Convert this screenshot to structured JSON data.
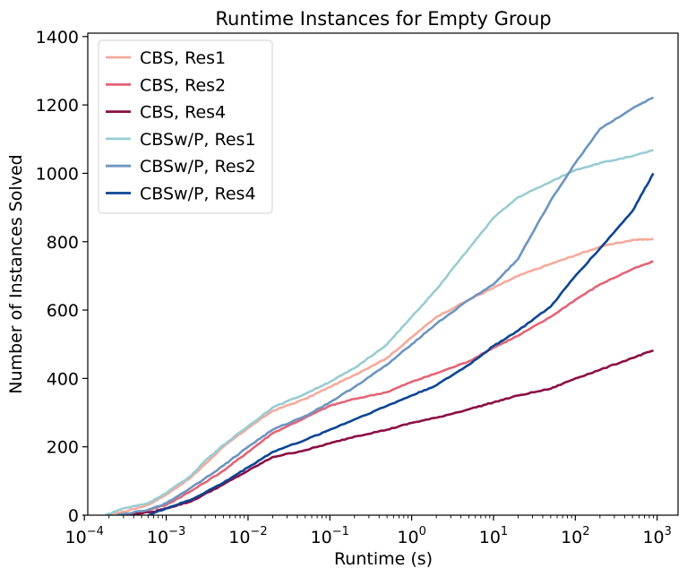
{
  "chart_data": {
    "type": "line",
    "title": "Runtime Instances for Empty Group",
    "xlabel": "Runtime (s)",
    "ylabel": "Number of Instances Solved",
    "x_scale": "log",
    "xlim": [
      0.00011,
      1800
    ],
    "ylim": [
      0,
      1410
    ],
    "x_ticks": [
      {
        "value": 0.0001,
        "base": "10",
        "exp": "−4"
      },
      {
        "value": 0.001,
        "base": "10",
        "exp": "−3"
      },
      {
        "value": 0.01,
        "base": "10",
        "exp": "−2"
      },
      {
        "value": 0.1,
        "base": "10",
        "exp": "−1"
      },
      {
        "value": 1,
        "base": "10",
        "exp": "0"
      },
      {
        "value": 10,
        "base": "10",
        "exp": "1"
      },
      {
        "value": 100,
        "base": "10",
        "exp": "2"
      },
      {
        "value": 1000,
        "base": "10",
        "exp": "3"
      }
    ],
    "y_ticks": [
      0,
      200,
      400,
      600,
      800,
      1000,
      1200,
      1400
    ],
    "grid": false,
    "legend_position": "upper-left",
    "series": [
      {
        "name": "CBS, Res1",
        "color": "#f4aa9c",
        "points": [
          [
            0.00018,
            0
          ],
          [
            0.0003,
            10
          ],
          [
            0.0006,
            30
          ],
          [
            0.001,
            60
          ],
          [
            0.002,
            110
          ],
          [
            0.003,
            150
          ],
          [
            0.005,
            200
          ],
          [
            0.01,
            255
          ],
          [
            0.02,
            305
          ],
          [
            0.05,
            340
          ],
          [
            0.1,
            375
          ],
          [
            0.2,
            410
          ],
          [
            0.5,
            460
          ],
          [
            1,
            520
          ],
          [
            2,
            580
          ],
          [
            5,
            630
          ],
          [
            10,
            665
          ],
          [
            20,
            700
          ],
          [
            50,
            735
          ],
          [
            100,
            760
          ],
          [
            200,
            785
          ],
          [
            500,
            805
          ],
          [
            900,
            808
          ]
        ]
      },
      {
        "name": "CBS, Res2",
        "color": "#e26576",
        "points": [
          [
            0.00025,
            0
          ],
          [
            0.0005,
            10
          ],
          [
            0.001,
            30
          ],
          [
            0.002,
            70
          ],
          [
            0.005,
            130
          ],
          [
            0.01,
            185
          ],
          [
            0.02,
            240
          ],
          [
            0.05,
            285
          ],
          [
            0.1,
            320
          ],
          [
            0.2,
            340
          ],
          [
            0.5,
            360
          ],
          [
            1,
            390
          ],
          [
            2,
            415
          ],
          [
            5,
            450
          ],
          [
            10,
            490
          ],
          [
            20,
            525
          ],
          [
            50,
            580
          ],
          [
            100,
            630
          ],
          [
            200,
            675
          ],
          [
            500,
            720
          ],
          [
            900,
            742
          ]
        ]
      },
      {
        "name": "CBS, Res4",
        "color": "#8b0f45",
        "points": [
          [
            0.00025,
            0
          ],
          [
            0.0007,
            10
          ],
          [
            0.001,
            20
          ],
          [
            0.002,
            40
          ],
          [
            0.005,
            90
          ],
          [
            0.01,
            130
          ],
          [
            0.02,
            170
          ],
          [
            0.05,
            190
          ],
          [
            0.1,
            210
          ],
          [
            0.2,
            230
          ],
          [
            0.5,
            250
          ],
          [
            1,
            270
          ],
          [
            2,
            285
          ],
          [
            5,
            310
          ],
          [
            10,
            330
          ],
          [
            20,
            350
          ],
          [
            50,
            370
          ],
          [
            100,
            400
          ],
          [
            200,
            425
          ],
          [
            500,
            460
          ],
          [
            900,
            482
          ]
        ]
      },
      {
        "name": "CBSw/P, Res1",
        "color": "#99ccd2",
        "points": [
          [
            0.00018,
            0
          ],
          [
            0.0003,
            20
          ],
          [
            0.0006,
            35
          ],
          [
            0.001,
            65
          ],
          [
            0.002,
            115
          ],
          [
            0.003,
            160
          ],
          [
            0.005,
            205
          ],
          [
            0.01,
            260
          ],
          [
            0.02,
            315
          ],
          [
            0.05,
            355
          ],
          [
            0.1,
            390
          ],
          [
            0.2,
            430
          ],
          [
            0.5,
            500
          ],
          [
            1,
            580
          ],
          [
            2,
            660
          ],
          [
            5,
            780
          ],
          [
            10,
            870
          ],
          [
            20,
            930
          ],
          [
            50,
            975
          ],
          [
            100,
            1010
          ],
          [
            200,
            1030
          ],
          [
            500,
            1050
          ],
          [
            900,
            1068
          ]
        ]
      },
      {
        "name": "CBSw/P, Res2",
        "color": "#6d95c0",
        "points": [
          [
            0.00025,
            0
          ],
          [
            0.0006,
            15
          ],
          [
            0.001,
            35
          ],
          [
            0.002,
            80
          ],
          [
            0.005,
            145
          ],
          [
            0.01,
            200
          ],
          [
            0.02,
            250
          ],
          [
            0.05,
            290
          ],
          [
            0.1,
            330
          ],
          [
            0.2,
            375
          ],
          [
            0.5,
            440
          ],
          [
            1,
            500
          ],
          [
            2,
            560
          ],
          [
            5,
            630
          ],
          [
            10,
            675
          ],
          [
            20,
            750
          ],
          [
            50,
            920
          ],
          [
            100,
            1030
          ],
          [
            200,
            1130
          ],
          [
            500,
            1190
          ],
          [
            900,
            1222
          ]
        ]
      },
      {
        "name": "CBSw/P, Res4",
        "color": "#0c4594",
        "points": [
          [
            0.0006,
            0
          ],
          [
            0.001,
            20
          ],
          [
            0.002,
            45
          ],
          [
            0.005,
            95
          ],
          [
            0.01,
            140
          ],
          [
            0.02,
            185
          ],
          [
            0.05,
            220
          ],
          [
            0.1,
            250
          ],
          [
            0.2,
            280
          ],
          [
            0.5,
            320
          ],
          [
            1,
            350
          ],
          [
            2,
            380
          ],
          [
            5,
            440
          ],
          [
            10,
            495
          ],
          [
            20,
            540
          ],
          [
            50,
            610
          ],
          [
            100,
            700
          ],
          [
            200,
            780
          ],
          [
            500,
            890
          ],
          [
            900,
            1000
          ]
        ]
      }
    ]
  }
}
